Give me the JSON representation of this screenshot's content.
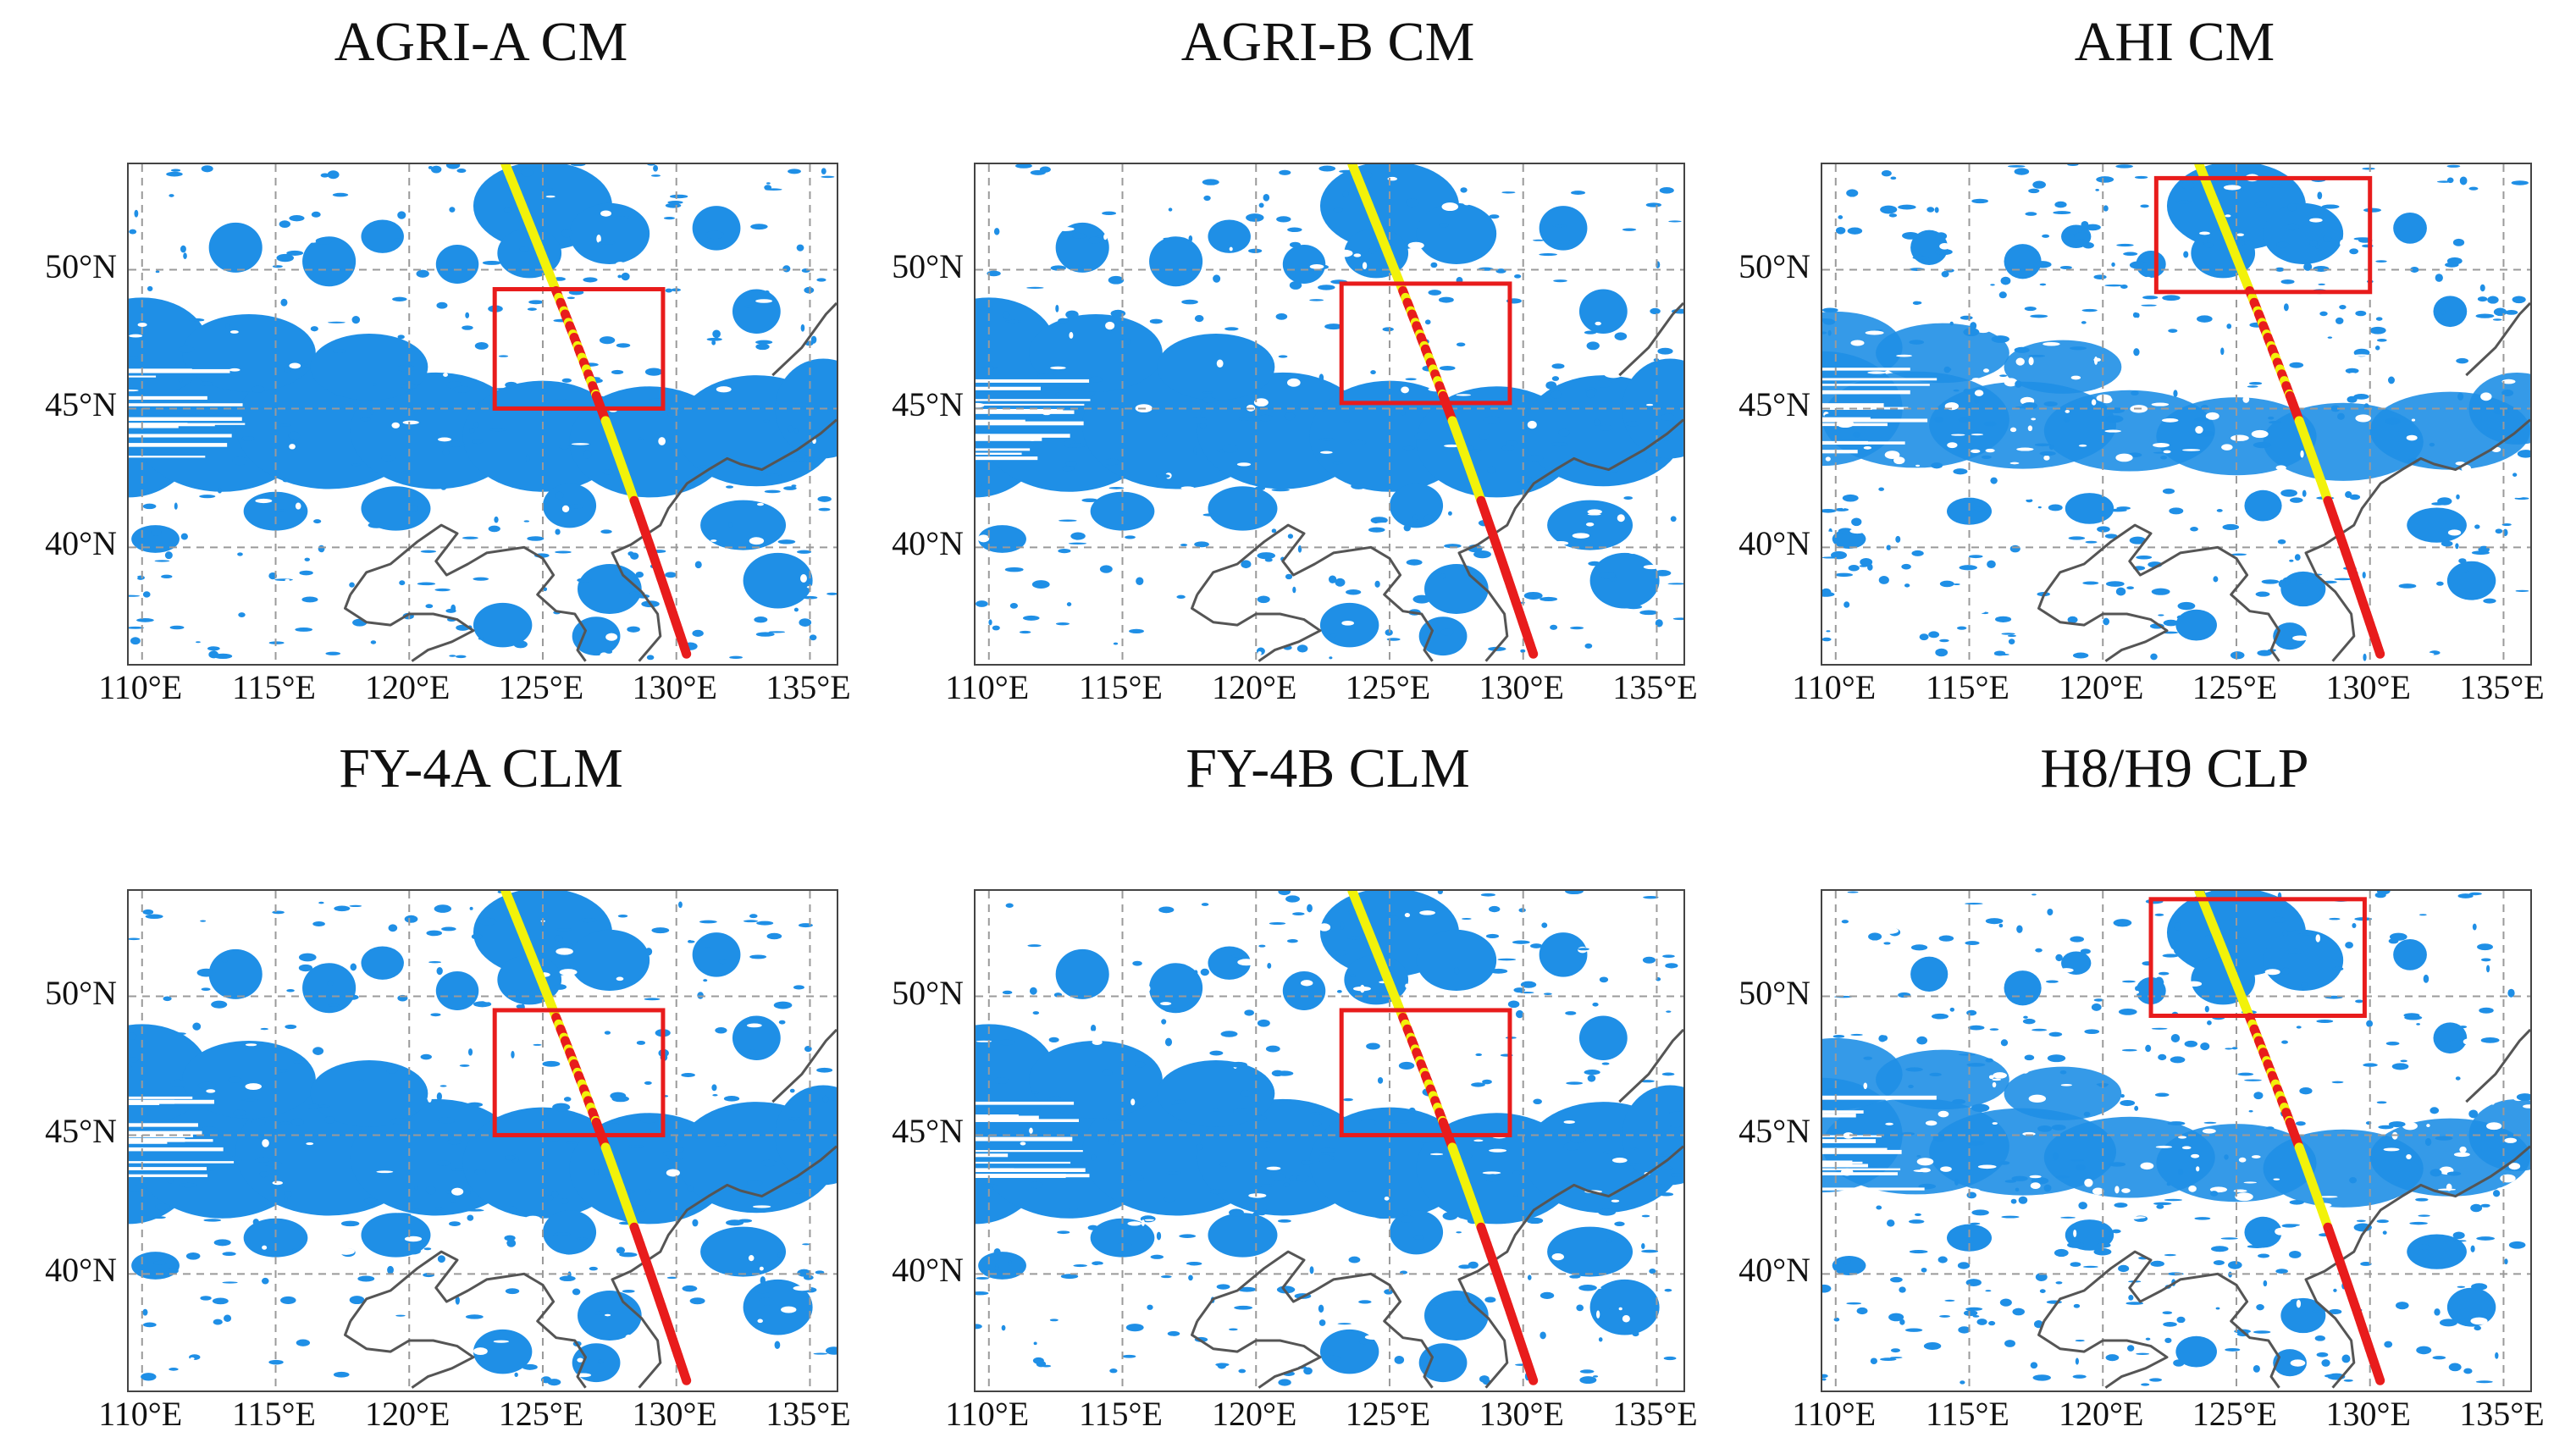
{
  "colors": {
    "cloud": "#1f8fe6",
    "clear": "#ffffff",
    "coast": "#555555",
    "grid": "#9a9a9a",
    "track_cloud": "#f2f20a",
    "track_clear": "#e81c1c",
    "box": "#e81c1c"
  },
  "axes": {
    "lon_ticks": [
      "110°E",
      "115°E",
      "120°E",
      "125°E",
      "130°E",
      "135°E"
    ],
    "lat_ticks": [
      "50°N",
      "45°N",
      "40°N"
    ],
    "lon_values": [
      110,
      115,
      120,
      125,
      130,
      135
    ],
    "lat_values": [
      50,
      45,
      40
    ],
    "lon_range": [
      109.5,
      136
    ],
    "lat_range": [
      35.8,
      53.8
    ]
  },
  "panels": [
    {
      "title": "AGRI-A CM",
      "box": [
        123.2,
        129.5,
        45,
        49.3
      ],
      "variant": "A",
      "grid": true
    },
    {
      "title": "AGRI-B CM",
      "box": [
        123.2,
        129.5,
        45.2,
        49.5
      ],
      "variant": "B",
      "grid": true
    },
    {
      "title": "AHI CM",
      "box": [
        122,
        130,
        49.2,
        53.3
      ],
      "variant": "H",
      "grid": true
    },
    {
      "title": "FY-4A CLM",
      "box": [
        123.2,
        129.5,
        45,
        49.5
      ],
      "variant": "A",
      "grid": true
    },
    {
      "title": "FY-4B CLM",
      "box": [
        123.2,
        129.5,
        45,
        49.5
      ],
      "variant": "B",
      "grid": true
    },
    {
      "title": "H8/H9 CLP",
      "box": [
        121.8,
        129.8,
        49.3,
        53.5
      ],
      "variant": "H",
      "grid": true
    }
  ]
}
